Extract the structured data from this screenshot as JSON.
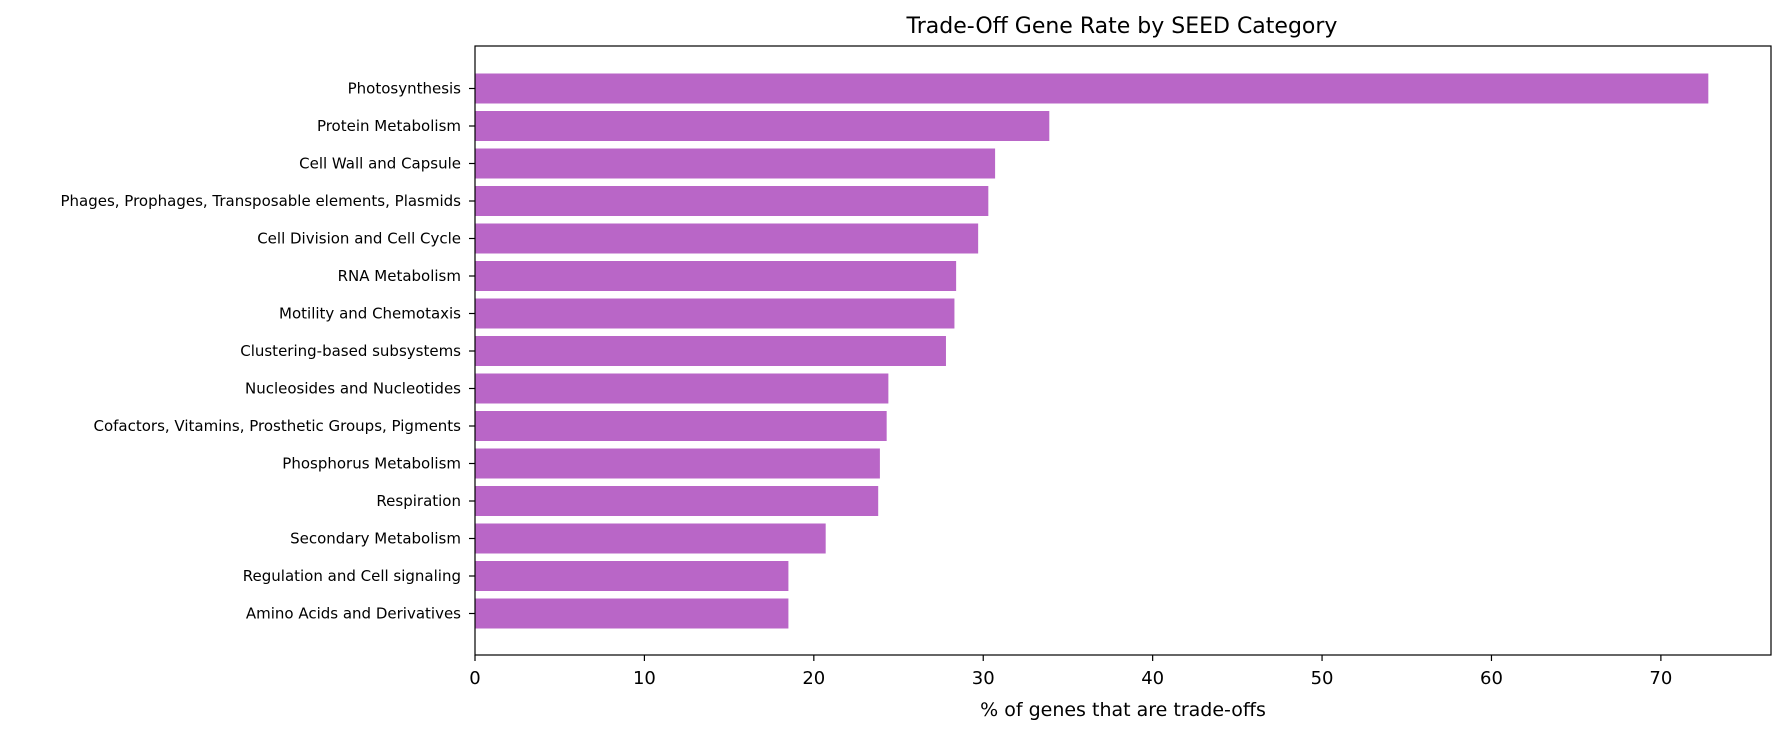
{
  "chart_data": {
    "type": "bar",
    "orientation": "horizontal",
    "title": "Trade-Off Gene Rate by SEED Category",
    "xlabel": "% of genes that are trade-offs",
    "ylabel": "",
    "categories": [
      "Photosynthesis",
      "Protein Metabolism",
      "Cell Wall and Capsule",
      "Phages, Prophages, Transposable elements, Plasmids",
      "Cell Division and Cell Cycle",
      "RNA Metabolism",
      "Motility and Chemotaxis",
      "Clustering-based subsystems",
      "Nucleosides and Nucleotides",
      "Cofactors, Vitamins, Prosthetic Groups, Pigments",
      "Phosphorus Metabolism",
      "Respiration",
      "Secondary Metabolism",
      "Regulation and Cell signaling",
      "Amino Acids and Derivatives"
    ],
    "values": [
      72.8,
      33.9,
      30.7,
      30.3,
      29.7,
      28.4,
      28.3,
      27.8,
      24.4,
      24.3,
      23.9,
      23.8,
      20.7,
      18.5,
      18.5
    ],
    "xlim": [
      0,
      76.5
    ],
    "xticks": [
      0,
      10,
      20,
      30,
      40,
      50,
      60,
      70
    ],
    "bar_color": "#b966c7",
    "grid": false
  }
}
